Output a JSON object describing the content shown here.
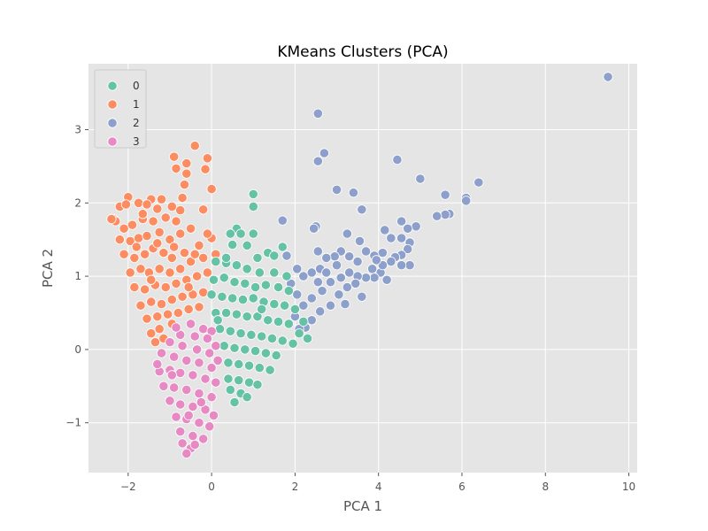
{
  "chart_data": {
    "type": "scatter",
    "title": "KMeans Clusters (PCA)",
    "xlabel": "PCA 1",
    "ylabel": "PCA 2",
    "xlim": [
      -2.95,
      10.2
    ],
    "ylim": [
      -1.68,
      3.9
    ],
    "xticks": [
      -2,
      0,
      2,
      4,
      6,
      8,
      10
    ],
    "yticks": [
      -1,
      0,
      1,
      2,
      3
    ],
    "grid": true,
    "legend": {
      "placement": "top-left",
      "entries": [
        "0",
        "1",
        "2",
        "3"
      ]
    },
    "colors": {
      "0": "#66c2a5",
      "1": "#fc8d62",
      "2": "#8da0cb",
      "3": "#e78ac3"
    },
    "series": [
      {
        "name": "2",
        "points": [
          [
            9.5,
            3.72
          ],
          [
            2.55,
            3.22
          ],
          [
            2.7,
            2.68
          ],
          [
            2.55,
            2.57
          ],
          [
            4.45,
            2.59
          ],
          [
            3.0,
            2.18
          ],
          [
            3.4,
            2.14
          ],
          [
            5.0,
            2.33
          ],
          [
            6.4,
            2.28
          ],
          [
            5.6,
            2.11
          ],
          [
            6.1,
            2.07
          ],
          [
            6.1,
            2.03
          ],
          [
            5.7,
            1.85
          ],
          [
            5.6,
            1.84
          ],
          [
            5.4,
            1.82
          ],
          [
            3.6,
            1.91
          ],
          [
            4.55,
            1.75
          ],
          [
            4.9,
            1.68
          ],
          [
            4.7,
            1.65
          ],
          [
            2.5,
            1.68
          ],
          [
            2.45,
            1.65
          ],
          [
            4.15,
            1.63
          ],
          [
            4.3,
            1.52
          ],
          [
            4.55,
            1.52
          ],
          [
            4.75,
            1.46
          ],
          [
            3.25,
            1.58
          ],
          [
            3.55,
            1.48
          ],
          [
            1.7,
            1.76
          ],
          [
            4.7,
            1.37
          ],
          [
            4.55,
            1.29
          ],
          [
            4.4,
            1.26
          ],
          [
            4.1,
            1.32
          ],
          [
            3.9,
            1.28
          ],
          [
            3.7,
            1.34
          ],
          [
            3.5,
            1.2
          ],
          [
            3.3,
            1.27
          ],
          [
            3.1,
            1.34
          ],
          [
            2.95,
            1.27
          ],
          [
            2.75,
            1.25
          ],
          [
            2.55,
            1.34
          ],
          [
            1.8,
            1.28
          ],
          [
            4.75,
            1.15
          ],
          [
            4.55,
            1.15
          ],
          [
            4.3,
            1.2
          ],
          [
            4.05,
            1.05
          ],
          [
            4.1,
            1.15
          ],
          [
            3.85,
            1.1
          ],
          [
            3.9,
            0.98
          ],
          [
            3.7,
            0.98
          ],
          [
            3.5,
            1.0
          ],
          [
            3.3,
            1.05
          ],
          [
            3.45,
            0.9
          ],
          [
            3.25,
            0.85
          ],
          [
            3.0,
            1.15
          ],
          [
            3.1,
            0.98
          ],
          [
            3.05,
            0.75
          ],
          [
            2.85,
            0.92
          ],
          [
            2.85,
            0.6
          ],
          [
            2.6,
            1.1
          ],
          [
            2.65,
            0.8
          ],
          [
            2.6,
            0.52
          ],
          [
            2.4,
            1.05
          ],
          [
            2.4,
            0.7
          ],
          [
            2.4,
            0.4
          ],
          [
            2.2,
            1.0
          ],
          [
            2.2,
            0.6
          ],
          [
            2.25,
            0.3
          ],
          [
            2.05,
            1.1
          ],
          [
            2.05,
            0.75
          ],
          [
            2.0,
            0.45
          ],
          [
            1.9,
            0.9
          ],
          [
            2.55,
            0.92
          ],
          [
            3.6,
            0.72
          ],
          [
            3.95,
            1.22
          ],
          [
            4.2,
            0.95
          ],
          [
            2.75,
            1.05
          ],
          [
            3.2,
            0.62
          ],
          [
            2.1,
            0.28
          ]
        ]
      },
      {
        "name": "1",
        "points": [
          [
            -0.4,
            2.78
          ],
          [
            -0.9,
            2.63
          ],
          [
            -0.1,
            2.61
          ],
          [
            -0.6,
            2.54
          ],
          [
            -0.85,
            2.47
          ],
          [
            -0.15,
            2.46
          ],
          [
            -0.6,
            2.4
          ],
          [
            -0.65,
            2.25
          ],
          [
            0.0,
            2.19
          ],
          [
            -2.0,
            2.08
          ],
          [
            -1.45,
            2.05
          ],
          [
            -1.2,
            2.05
          ],
          [
            -0.7,
            2.07
          ],
          [
            -2.35,
            1.78
          ],
          [
            -2.2,
            1.95
          ],
          [
            -2.05,
            1.98
          ],
          [
            -1.75,
            2.0
          ],
          [
            -1.55,
            1.98
          ],
          [
            -1.3,
            1.92
          ],
          [
            -0.95,
            1.95
          ],
          [
            -0.75,
            1.9
          ],
          [
            -0.2,
            1.91
          ],
          [
            -2.3,
            1.75
          ],
          [
            -2.1,
            1.65
          ],
          [
            -1.9,
            1.7
          ],
          [
            -1.65,
            1.78
          ],
          [
            -1.4,
            1.75
          ],
          [
            -1.1,
            1.8
          ],
          [
            -0.85,
            1.75
          ],
          [
            -2.2,
            1.5
          ],
          [
            -1.95,
            1.48
          ],
          [
            -1.75,
            1.52
          ],
          [
            -1.55,
            1.55
          ],
          [
            -1.25,
            1.6
          ],
          [
            -1.0,
            1.5
          ],
          [
            -0.75,
            1.58
          ],
          [
            -0.5,
            1.65
          ],
          [
            -2.1,
            1.3
          ],
          [
            -1.85,
            1.25
          ],
          [
            -1.6,
            1.3
          ],
          [
            -1.4,
            1.38
          ],
          [
            -1.15,
            1.32
          ],
          [
            -0.95,
            1.25
          ],
          [
            -0.65,
            1.32
          ],
          [
            -0.3,
            1.42
          ],
          [
            0.0,
            1.52
          ],
          [
            -1.95,
            1.05
          ],
          [
            -1.7,
            1.1
          ],
          [
            -1.5,
            1.05
          ],
          [
            -1.25,
            1.1
          ],
          [
            -1.0,
            1.05
          ],
          [
            -0.75,
            1.1
          ],
          [
            -0.5,
            1.2
          ],
          [
            -0.2,
            1.25
          ],
          [
            0.1,
            1.3
          ],
          [
            -1.85,
            0.85
          ],
          [
            -1.6,
            0.82
          ],
          [
            -1.35,
            0.88
          ],
          [
            -1.1,
            0.85
          ],
          [
            -0.85,
            0.9
          ],
          [
            -0.6,
            0.95
          ],
          [
            -0.35,
            1.0
          ],
          [
            -0.1,
            1.05
          ],
          [
            -1.7,
            0.6
          ],
          [
            -1.45,
            0.65
          ],
          [
            -1.2,
            0.62
          ],
          [
            -0.95,
            0.68
          ],
          [
            -0.7,
            0.72
          ],
          [
            -0.45,
            0.75
          ],
          [
            -0.2,
            0.78
          ],
          [
            -1.55,
            0.42
          ],
          [
            -1.3,
            0.45
          ],
          [
            -1.05,
            0.48
          ],
          [
            -0.8,
            0.5
          ],
          [
            -0.55,
            0.55
          ],
          [
            -0.3,
            0.58
          ],
          [
            -1.45,
            0.22
          ],
          [
            -1.25,
            0.28
          ],
          [
            -0.95,
            0.35
          ],
          [
            -1.35,
            0.1
          ],
          [
            -1.15,
            0.15
          ],
          [
            -2.4,
            1.78
          ],
          [
            -1.8,
            1.4
          ],
          [
            -1.3,
            1.45
          ],
          [
            -0.9,
            1.4
          ],
          [
            -0.4,
            1.3
          ],
          [
            -0.1,
            1.58
          ],
          [
            -1.45,
            0.95
          ],
          [
            -0.55,
            0.85
          ],
          [
            -1.65,
            1.85
          ]
        ]
      },
      {
        "name": "0",
        "points": [
          [
            1.0,
            2.12
          ],
          [
            1.0,
            1.95
          ],
          [
            0.6,
            1.65
          ],
          [
            0.7,
            1.58
          ],
          [
            0.45,
            1.58
          ],
          [
            1.0,
            1.58
          ],
          [
            0.5,
            1.43
          ],
          [
            0.85,
            1.42
          ],
          [
            1.7,
            1.4
          ],
          [
            1.35,
            1.32
          ],
          [
            1.5,
            1.28
          ],
          [
            1.1,
            1.25
          ],
          [
            0.1,
            1.2
          ],
          [
            0.35,
            1.18
          ],
          [
            0.6,
            1.15
          ],
          [
            0.85,
            1.1
          ],
          [
            1.15,
            1.05
          ],
          [
            1.5,
            1.05
          ],
          [
            1.8,
            1.0
          ],
          [
            0.05,
            0.95
          ],
          [
            0.3,
            0.98
          ],
          [
            0.55,
            0.92
          ],
          [
            0.8,
            0.9
          ],
          [
            1.05,
            0.85
          ],
          [
            1.3,
            0.88
          ],
          [
            1.6,
            0.85
          ],
          [
            1.85,
            0.8
          ],
          [
            0.0,
            0.75
          ],
          [
            0.25,
            0.72
          ],
          [
            0.5,
            0.7
          ],
          [
            0.75,
            0.68
          ],
          [
            1.0,
            0.7
          ],
          [
            1.25,
            0.65
          ],
          [
            1.5,
            0.62
          ],
          [
            1.75,
            0.6
          ],
          [
            2.0,
            0.55
          ],
          [
            0.1,
            0.5
          ],
          [
            0.35,
            0.5
          ],
          [
            0.6,
            0.48
          ],
          [
            0.85,
            0.45
          ],
          [
            1.1,
            0.45
          ],
          [
            1.35,
            0.4
          ],
          [
            1.6,
            0.38
          ],
          [
            1.85,
            0.35
          ],
          [
            2.1,
            0.22
          ],
          [
            0.2,
            0.28
          ],
          [
            0.45,
            0.25
          ],
          [
            0.7,
            0.22
          ],
          [
            0.95,
            0.2
          ],
          [
            1.2,
            0.18
          ],
          [
            1.45,
            0.15
          ],
          [
            1.7,
            0.12
          ],
          [
            1.95,
            0.08
          ],
          [
            0.3,
            0.05
          ],
          [
            0.55,
            0.02
          ],
          [
            0.8,
            0.0
          ],
          [
            1.05,
            -0.02
          ],
          [
            1.3,
            -0.05
          ],
          [
            1.55,
            -0.08
          ],
          [
            0.4,
            -0.18
          ],
          [
            0.65,
            -0.2
          ],
          [
            0.9,
            -0.22
          ],
          [
            1.15,
            -0.25
          ],
          [
            1.4,
            -0.28
          ],
          [
            0.4,
            -0.4
          ],
          [
            0.65,
            -0.42
          ],
          [
            0.9,
            -0.45
          ],
          [
            1.1,
            -0.48
          ],
          [
            0.45,
            -0.55
          ],
          [
            0.7,
            -0.6
          ],
          [
            0.85,
            -0.65
          ],
          [
            0.55,
            -0.72
          ],
          [
            2.2,
            0.38
          ],
          [
            2.3,
            0.15
          ],
          [
            0.35,
            1.25
          ],
          [
            1.2,
            0.55
          ],
          [
            0.15,
            0.4
          ]
        ]
      },
      {
        "name": "3",
        "points": [
          [
            -0.5,
            0.35
          ],
          [
            -0.2,
            0.28
          ],
          [
            0.0,
            0.25
          ],
          [
            -0.75,
            0.2
          ],
          [
            -0.4,
            0.18
          ],
          [
            -0.1,
            0.15
          ],
          [
            0.1,
            0.05
          ],
          [
            -1.0,
            0.1
          ],
          [
            -0.7,
            0.05
          ],
          [
            -0.35,
            0.0
          ],
          [
            -0.05,
            -0.05
          ],
          [
            0.15,
            -0.15
          ],
          [
            -1.2,
            -0.05
          ],
          [
            -0.9,
            -0.1
          ],
          [
            -0.6,
            -0.15
          ],
          [
            -0.3,
            -0.18
          ],
          [
            0.0,
            -0.25
          ],
          [
            -1.25,
            -0.3
          ],
          [
            -1.0,
            -0.28
          ],
          [
            -0.75,
            -0.32
          ],
          [
            -0.45,
            -0.35
          ],
          [
            -0.15,
            -0.4
          ],
          [
            0.1,
            -0.45
          ],
          [
            -1.15,
            -0.5
          ],
          [
            -0.9,
            -0.52
          ],
          [
            -0.6,
            -0.55
          ],
          [
            -0.3,
            -0.6
          ],
          [
            0.0,
            -0.65
          ],
          [
            -1.0,
            -0.7
          ],
          [
            -0.75,
            -0.75
          ],
          [
            -0.45,
            -0.78
          ],
          [
            -0.15,
            -0.82
          ],
          [
            -0.85,
            -0.92
          ],
          [
            -0.6,
            -0.95
          ],
          [
            -0.3,
            -1.0
          ],
          [
            -0.05,
            -1.05
          ],
          [
            -0.75,
            -1.12
          ],
          [
            -0.45,
            -1.18
          ],
          [
            -0.2,
            -1.22
          ],
          [
            -0.7,
            -1.28
          ],
          [
            -0.5,
            -1.35
          ],
          [
            -0.6,
            -1.42
          ],
          [
            -1.3,
            -0.2
          ],
          [
            -0.95,
            -0.35
          ],
          [
            -0.25,
            -0.72
          ],
          [
            -0.55,
            -0.9
          ],
          [
            -0.85,
            0.3
          ],
          [
            0.05,
            -0.9
          ],
          [
            -0.4,
            -1.3
          ]
        ]
      }
    ]
  }
}
